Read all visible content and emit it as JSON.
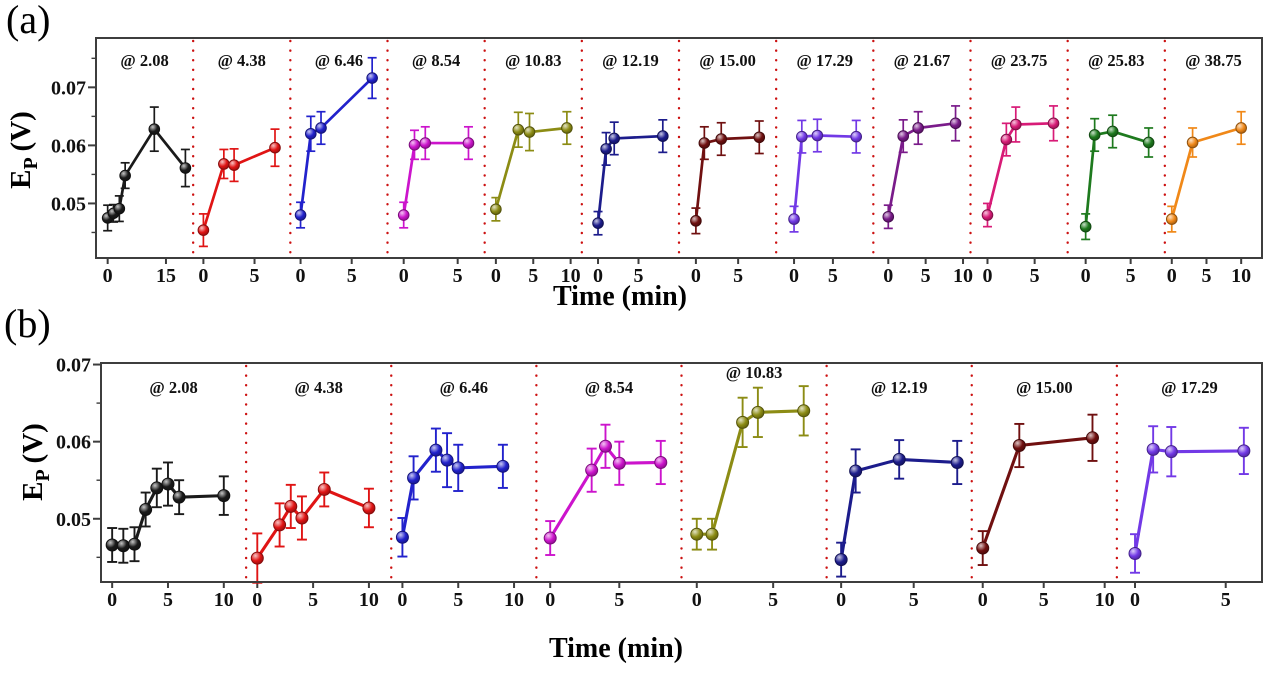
{
  "figure": {
    "panel_a_tag": "(a)",
    "panel_b_tag": "(b)",
    "y_label_main": "E",
    "y_label_sub": "P",
    "y_label_unit": "(V)",
    "x_axis_label": "Time (min)",
    "frame_color": "#3d3d3d",
    "separator_color": "#cc1111",
    "text_color": "#111111"
  },
  "chart_data": [
    {
      "id": "a",
      "type": "line",
      "title": "",
      "xlabel": "Time (min)",
      "ylabel": "E_P (V)",
      "ylim": [
        0.0406,
        0.0785
      ],
      "yticks": [
        0.05,
        0.06,
        0.07
      ],
      "ytick_labels": [
        "0.05",
        "0.06",
        "0.07"
      ],
      "grid": false,
      "legend": "none",
      "subpanels": [
        {
          "label": "@ 2.08",
          "color": "#1a1a1a",
          "xlim": [
            -3,
            22
          ],
          "xticks": [
            0,
            15
          ],
          "x": [
            0,
            1.5,
            3,
            4.5,
            12,
            20
          ],
          "y": [
            0.0475,
            0.0483,
            0.0491,
            0.0548,
            0.0628,
            0.0561
          ],
          "yerr": [
            0.0022,
            0.0015,
            0.0022,
            0.0022,
            0.0038,
            0.0032
          ]
        },
        {
          "label": "@ 4.38",
          "color": "#e01414",
          "xlim": [
            -1,
            8.5
          ],
          "xticks": [
            0,
            5
          ],
          "x": [
            0,
            2,
            3,
            7
          ],
          "y": [
            0.0454,
            0.0568,
            0.0566,
            0.0596
          ],
          "yerr": [
            0.0028,
            0.0025,
            0.0028,
            0.0032
          ]
        },
        {
          "label": "@ 6.46",
          "color": "#2222cc",
          "xlim": [
            -1,
            8.5
          ],
          "xticks": [
            0,
            5
          ],
          "x": [
            0,
            1,
            2,
            7
          ],
          "y": [
            0.048,
            0.062,
            0.063,
            0.0716
          ],
          "yerr": [
            0.0022,
            0.003,
            0.0028,
            0.0035
          ]
        },
        {
          "label": "@ 8.54",
          "color": "#cc14cc",
          "xlim": [
            -1.5,
            7.5
          ],
          "xticks": [
            0,
            5
          ],
          "x": [
            0,
            1,
            2,
            6
          ],
          "y": [
            0.048,
            0.0601,
            0.0604,
            0.0604
          ],
          "yerr": [
            0.0022,
            0.0025,
            0.0028,
            0.0028
          ]
        },
        {
          "label": "@ 10.83",
          "color": "#8c8c14",
          "xlim": [
            -1.5,
            11.5
          ],
          "xticks": [
            0,
            5,
            10
          ],
          "x": [
            0,
            3,
            4.5,
            9.5
          ],
          "y": [
            0.049,
            0.0627,
            0.0623,
            0.063
          ],
          "yerr": [
            0.002,
            0.003,
            0.0032,
            0.0028
          ]
        },
        {
          "label": "@ 12.19",
          "color": "#1c1c8c",
          "xlim": [
            -2,
            10
          ],
          "xticks": [
            0,
            5
          ],
          "x": [
            0,
            1,
            2,
            8
          ],
          "y": [
            0.0466,
            0.0594,
            0.0612,
            0.0616
          ],
          "yerr": [
            0.002,
            0.0028,
            0.0028,
            0.0028
          ]
        },
        {
          "label": "@ 15.00",
          "color": "#701010",
          "xlim": [
            -2,
            9.5
          ],
          "xticks": [
            0,
            5
          ],
          "x": [
            0,
            1,
            3,
            7.5
          ],
          "y": [
            0.047,
            0.0604,
            0.0611,
            0.0614
          ],
          "yerr": [
            0.0022,
            0.0028,
            0.0028,
            0.0028
          ]
        },
        {
          "label": "@ 17.29",
          "color": "#7239e6",
          "xlim": [
            -2.3,
            10.2
          ],
          "xticks": [
            0,
            5
          ],
          "x": [
            0,
            1,
            3,
            8
          ],
          "y": [
            0.0473,
            0.0615,
            0.0617,
            0.0615
          ],
          "yerr": [
            0.0022,
            0.0028,
            0.0028,
            0.0028
          ]
        },
        {
          "label": "@ 21.67",
          "color": "#7a1b8a",
          "xlim": [
            -2,
            11
          ],
          "xticks": [
            0,
            5,
            10
          ],
          "x": [
            0,
            2,
            4,
            9
          ],
          "y": [
            0.0477,
            0.0616,
            0.063,
            0.0638
          ],
          "yerr": [
            0.002,
            0.0028,
            0.0028,
            0.003
          ]
        },
        {
          "label": "@ 23.75",
          "color": "#d81b77",
          "xlim": [
            -1.8,
            8.5
          ],
          "xticks": [
            0,
            5
          ],
          "x": [
            0,
            2,
            3,
            7
          ],
          "y": [
            0.048,
            0.061,
            0.0636,
            0.0638
          ],
          "yerr": [
            0.002,
            0.0028,
            0.003,
            0.003
          ]
        },
        {
          "label": "@ 25.83",
          "color": "#1e7a1e",
          "xlim": [
            -2,
            8.8
          ],
          "xticks": [
            0,
            5
          ],
          "x": [
            0,
            1,
            3,
            7
          ],
          "y": [
            0.046,
            0.0618,
            0.0624,
            0.0605
          ],
          "yerr": [
            0.0022,
            0.0028,
            0.0028,
            0.0025
          ]
        },
        {
          "label": "@ 38.75",
          "color": "#f08818",
          "xlim": [
            -1,
            13
          ],
          "xticks": [
            0,
            5,
            10
          ],
          "x": [
            0,
            3,
            10
          ],
          "y": [
            0.0473,
            0.0605,
            0.063
          ],
          "yerr": [
            0.0022,
            0.0025,
            0.0028
          ]
        }
      ]
    },
    {
      "id": "b",
      "type": "line",
      "title": "",
      "xlabel": "Time (min)",
      "ylabel": "E_P (V)",
      "ylim": [
        0.0418,
        0.0702
      ],
      "yticks": [
        0.05,
        0.06,
        0.07
      ],
      "ytick_labels": [
        "0.05",
        "0.06",
        "0.07"
      ],
      "grid": false,
      "legend": "none",
      "subpanels": [
        {
          "label": "@ 2.08",
          "color": "#1a1a1a",
          "xlim": [
            -1,
            12
          ],
          "xticks": [
            0,
            5,
            10
          ],
          "x": [
            0,
            1,
            2,
            3,
            4,
            5,
            6,
            10
          ],
          "y": [
            0.0466,
            0.0465,
            0.0467,
            0.0512,
            0.054,
            0.0545,
            0.0528,
            0.053
          ],
          "yerr": [
            0.0022,
            0.0022,
            0.0022,
            0.0022,
            0.0025,
            0.0028,
            0.0022,
            0.0025
          ]
        },
        {
          "label": "@ 4.38",
          "color": "#e01414",
          "xlim": [
            -1,
            12
          ],
          "xticks": [
            0,
            5,
            10
          ],
          "x": [
            0,
            2,
            3,
            4,
            6,
            10
          ],
          "y": [
            0.0449,
            0.0492,
            0.0516,
            0.0501,
            0.0538,
            0.0514
          ],
          "yerr": [
            0.0032,
            0.0028,
            0.0028,
            0.0028,
            0.0022,
            0.0025
          ]
        },
        {
          "label": "@ 6.46",
          "color": "#2222cc",
          "xlim": [
            -1,
            12
          ],
          "xticks": [
            0,
            5,
            10
          ],
          "x": [
            0,
            1,
            3,
            4,
            5,
            9
          ],
          "y": [
            0.0476,
            0.0553,
            0.0589,
            0.0576,
            0.0566,
            0.0568
          ],
          "yerr": [
            0.0025,
            0.0028,
            0.0028,
            0.0035,
            0.003,
            0.0028
          ]
        },
        {
          "label": "@ 8.54",
          "color": "#cc14cc",
          "xlim": [
            -1,
            9.5
          ],
          "xticks": [
            0,
            5
          ],
          "x": [
            0,
            3,
            4,
            5,
            8
          ],
          "y": [
            0.0475,
            0.0563,
            0.0594,
            0.0572,
            0.0573
          ],
          "yerr": [
            0.0022,
            0.0028,
            0.0028,
            0.0028,
            0.0028
          ]
        },
        {
          "label": "@ 10.83",
          "color": "#8c8c14",
          "xlim": [
            -1,
            8.5
          ],
          "xticks": [
            0,
            5
          ],
          "label_dy": -15,
          "x": [
            0,
            1,
            3,
            4,
            7
          ],
          "y": [
            0.048,
            0.048,
            0.0625,
            0.0638,
            0.064
          ],
          "yerr": [
            0.002,
            0.002,
            0.0032,
            0.0032,
            0.0032
          ]
        },
        {
          "label": "@ 12.19",
          "color": "#1c1c8c",
          "xlim": [
            -1,
            9
          ],
          "xticks": [
            0,
            5
          ],
          "x": [
            0,
            1,
            4,
            8
          ],
          "y": [
            0.0447,
            0.0562,
            0.0577,
            0.0573
          ],
          "yerr": [
            0.0022,
            0.0028,
            0.0025,
            0.0028
          ]
        },
        {
          "label": "@ 15.00",
          "color": "#701010",
          "xlim": [
            -0.9,
            11
          ],
          "xticks": [
            0,
            5,
            10
          ],
          "x": [
            0,
            3,
            9
          ],
          "y": [
            0.0462,
            0.0595,
            0.0605
          ],
          "yerr": [
            0.0022,
            0.0028,
            0.003
          ]
        },
        {
          "label": "@ 17.29",
          "color": "#7239e6",
          "xlim": [
            -1,
            7
          ],
          "xticks": [
            0,
            5
          ],
          "x": [
            0,
            1,
            2,
            6
          ],
          "y": [
            0.0455,
            0.059,
            0.0587,
            0.0588
          ],
          "yerr": [
            0.0025,
            0.003,
            0.0032,
            0.003
          ]
        }
      ]
    }
  ]
}
